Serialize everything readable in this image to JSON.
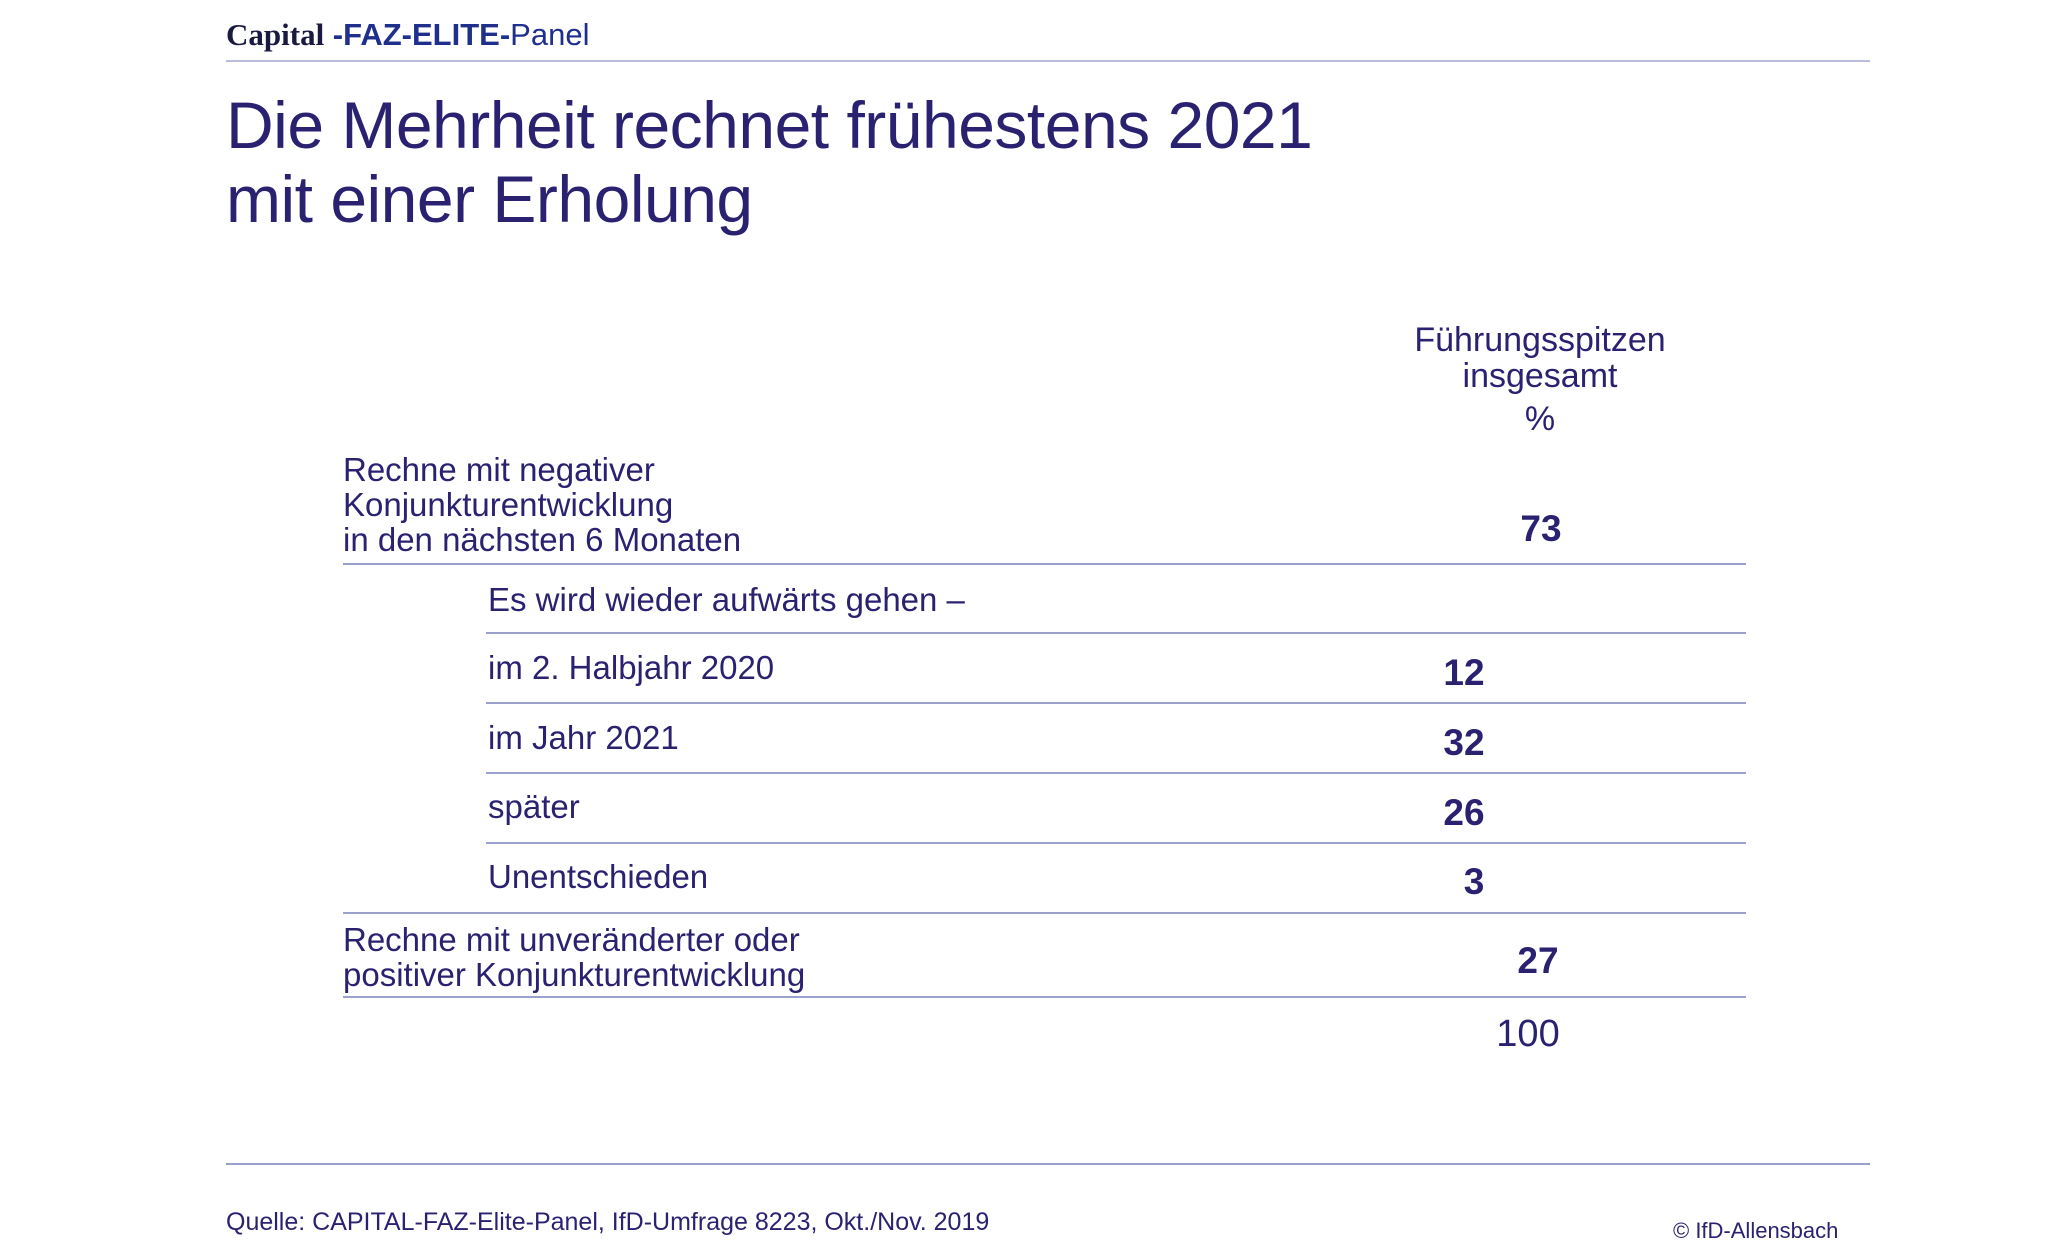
{
  "header": {
    "brand_capital": "Capital",
    "brand_faz": " -FAZ-ELITE-",
    "brand_panel": "Panel"
  },
  "title": {
    "line1": "Die Mehrheit rechnet frühestens 2021",
    "line2": "mit einer Erholung"
  },
  "table": {
    "column_header": {
      "line1": "Führungsspitzen",
      "line2": "insgesamt",
      "unit": "%"
    },
    "rows": [
      {
        "label_lines": [
          "Rechne mit negativer",
          "Konjunkturentwicklung",
          "in den nächsten 6 Monaten"
        ],
        "value": "73"
      },
      {
        "label": "Es wird wieder aufwärts gehen –",
        "value": ""
      },
      {
        "label": "im 2. Halbjahr 2020",
        "value": "12"
      },
      {
        "label": "im Jahr 2021",
        "value": "32"
      },
      {
        "label": "später",
        "value": "26"
      },
      {
        "label": "Unentschieden",
        "value": "3"
      },
      {
        "label_lines": [
          "Rechne mit unveränderter oder",
          "positiver Konjunkturentwicklung"
        ],
        "value": "27"
      }
    ],
    "total": "100"
  },
  "footer": {
    "source": "Quelle: CAPITAL-FAZ-Elite-Panel, IfD-Umfrage 8223, Okt./Nov. 2019",
    "copyright": "© IfD-Allensbach"
  },
  "colors": {
    "text": "#2a2270",
    "brand": "#1f2f8c",
    "rule": "#9aa1cc"
  }
}
